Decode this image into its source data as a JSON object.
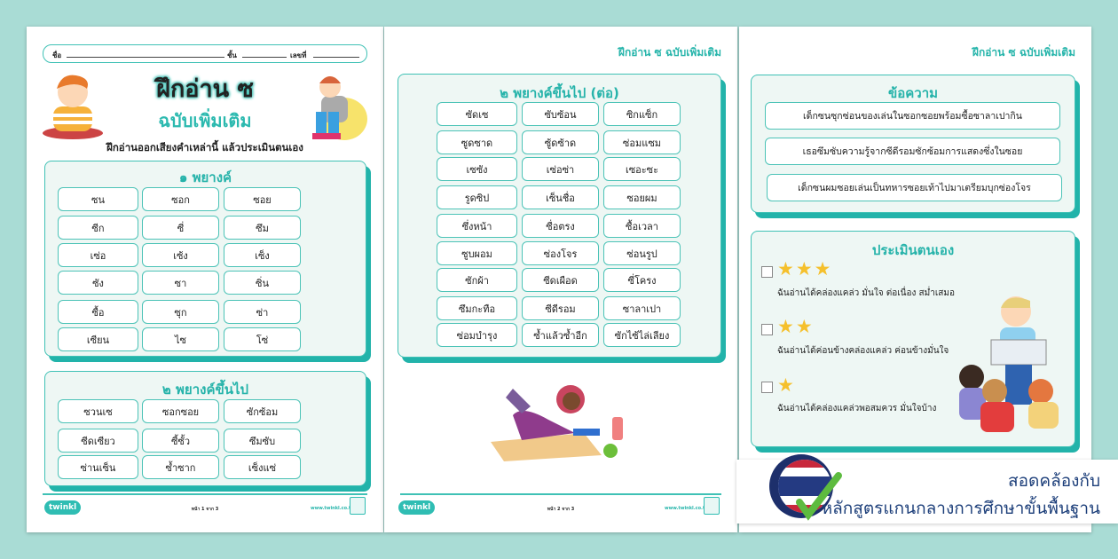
{
  "page1": {
    "name_label": "ชื่อ",
    "class_label": "ชั้น",
    "number_label": "เลขที่",
    "title": "ฝึกอ่าน ซ",
    "subtitle": "ฉบับเพิ่มเติม",
    "instruction": "ฝึกอ่านออกเสียงคำเหล่านี้ แล้วประเมินตนเอง",
    "section1": {
      "title": "๑ พยางค์",
      "words": [
        "ซน",
        "ซอก",
        "ซอย",
        "ซีก",
        "ซี่",
        "ซึม",
        "เซ่อ",
        "เซ้ง",
        "เซ็ง",
        "ซัง",
        "ซา",
        "ซิ่น",
        "ซื้อ",
        "ซุก",
        "ซ่า",
        "เซียน",
        "ไซ",
        "โซ่"
      ]
    },
    "section2": {
      "title": "๒ พยางค์ขึ้นไป",
      "words": [
        "ซวนเซ",
        "ซอกซอย",
        "ซักซ้อม",
        "ซีดเซียว",
        "ซี้ซั้ว",
        "ซึมซับ",
        "ซ่านเซ็น",
        "ซ้ำซาก",
        "เซ็งแซ่"
      ]
    },
    "footer": {
      "page": "หน้า 1 จาก 3"
    }
  },
  "page2": {
    "header": "ฝึกอ่าน ซ ฉบับเพิ่มเติม",
    "section": {
      "title": "๒ พยางค์ขึ้นไป (ต่อ)",
      "words": [
        "ซัดเซ",
        "ซับซ้อน",
        "ซิกแซ็ก",
        "ซูดซาด",
        "ซู้ดซ้าด",
        "ซ่อมแซม",
        "เซซัง",
        "เซ่อซ่า",
        "เซอะซะ",
        "รูดซิป",
        "เซ็นชื่อ",
        "ซอยผม",
        "ซึ่งหน้า",
        "ซื่อตรง",
        "ซื้อเวลา",
        "ซูบผอม",
        "ซ่องโจร",
        "ซ่อนรูป",
        "ซักผ้า",
        "ซีดเผือด",
        "ซี่โครง",
        "ซึมกะทือ",
        "ซีดีรอม",
        "ซาลาเปา",
        "ซ่อมบำรุง",
        "ซ้ำแล้วซ้ำอีก",
        "ซักไซ้ไล่เลียง"
      ]
    },
    "footer": {
      "page": "หน้า 2 จาก 3"
    }
  },
  "page3": {
    "header": "ฝึกอ่าน ซ ฉบับเพิ่มเติม",
    "sentences": {
      "title": "ข้อความ",
      "items": [
        "เด็กซนซุกซ่อนของเล่นในซอกซอยพร้อมซื้อซาลาเปากิน",
        "เธอซึมซับความรู้จากซีดีรอมซักซ้อมการแสดงซึ่งในซอย",
        "เด็กซนผมซอยเล่นเป็นทหารซอยเท้าไปมาเตรียมบุกซ่องโจร"
      ]
    },
    "self_assessment": {
      "title": "ประเมินตนเอง",
      "levels": [
        {
          "stars": 3,
          "text": "ฉันอ่านได้คล่องแคล่ว มั่นใจ ต่อเนื่อง สม่ำเสมอ"
        },
        {
          "stars": 2,
          "text": "ฉันอ่านได้ค่อนข้างคล่องแคล่ว ค่อนข้างมั่นใจ"
        },
        {
          "stars": 1,
          "text": "ฉันอ่านได้คล่องแคล่วพอสมควร มั่นใจบ้าง"
        }
      ]
    }
  },
  "footer_common": {
    "logo": "twinkl",
    "url": "www.twinkl.co.th"
  },
  "badge": {
    "line1": "สอดคล้องกับ",
    "line2": "หลักสูตรแกนกลางการศึกษาขั้นพื้นฐาน"
  },
  "colors": {
    "background": "#a9dcd5",
    "accent": "#26b3aa",
    "badge_text": "#1d3f7a",
    "star": "#f5c02c"
  }
}
